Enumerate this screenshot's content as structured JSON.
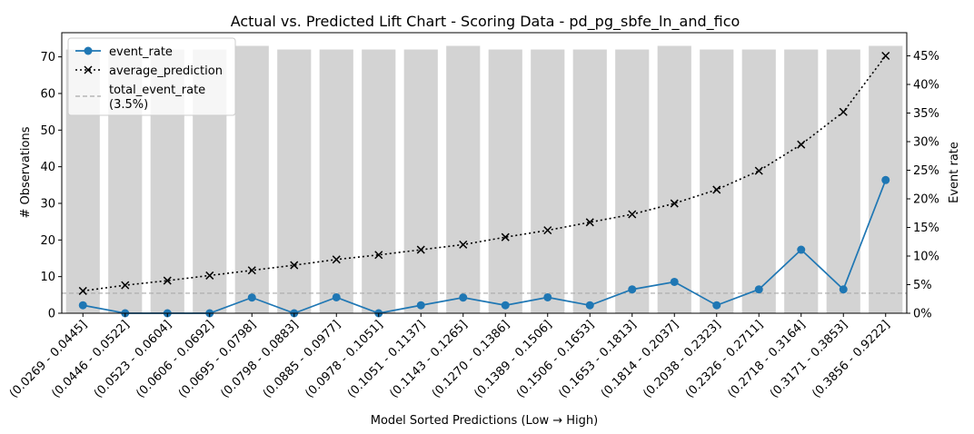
{
  "chart_data": {
    "type": "bar",
    "title": "Actual vs. Predicted Lift Chart - Scoring Data - pd_pg_sbfe_ln_and_fico",
    "xlabel": "Model Sorted Predictions (Low → High)",
    "ylabel": "# Observations",
    "y2label": "Event rate",
    "ylim": [
      0,
      76.6
    ],
    "y2lim": [
      0,
      0.4905
    ],
    "yticks": [
      "0",
      "10",
      "20",
      "30",
      "40",
      "50",
      "60",
      "70"
    ],
    "y2ticks": [
      "0%",
      "5%",
      "10%",
      "15%",
      "20%",
      "25%",
      "30%",
      "35%",
      "40%",
      "45%"
    ],
    "categories": [
      "(0.0269 - 0.0445]",
      "(0.0446 - 0.0522]",
      "(0.0523 - 0.0604]",
      "(0.0606 - 0.0692]",
      "(0.0695 - 0.0798]",
      "(0.0798 - 0.0883]",
      "(0.0885 - 0.0977]",
      "(0.0978 - 0.1051]",
      "(0.1051 - 0.1137]",
      "(0.1143 - 0.1265]",
      "(0.1270 - 0.1386]",
      "(0.1389 - 0.1506]",
      "(0.1506 - 0.1653]",
      "(0.1653 - 0.1813]",
      "(0.1814 - 0.2037]",
      "(0.2038 - 0.2323]",
      "(0.2326 - 0.2711]",
      "(0.2718 - 0.3164]",
      "(0.3171 - 0.3853]",
      "(0.3856 - 0.9222]"
    ],
    "bar_values": [
      72,
      72,
      72,
      72,
      73,
      72,
      72,
      72,
      72,
      73,
      72,
      72,
      72,
      72,
      73,
      72,
      72,
      72,
      72,
      73
    ],
    "bar_color": "#d3d3d3",
    "series": [
      {
        "name": "event_rate",
        "axis": "right",
        "color": "#1f77b4",
        "style": "solid-circle",
        "values": [
          0.0139,
          0.0,
          0.0,
          0.0,
          0.0274,
          0.0,
          0.0278,
          0.0,
          0.0139,
          0.0274,
          0.0139,
          0.0278,
          0.0139,
          0.0417,
          0.0548,
          0.0139,
          0.0417,
          0.1111,
          0.0417,
          0.2329
        ]
      },
      {
        "name": "average_prediction",
        "axis": "right",
        "color": "#000000",
        "style": "dotted-x",
        "values": [
          0.039,
          0.049,
          0.057,
          0.066,
          0.075,
          0.084,
          0.094,
          0.102,
          0.111,
          0.12,
          0.133,
          0.145,
          0.159,
          0.173,
          0.192,
          0.216,
          0.249,
          0.295,
          0.352,
          0.45
        ]
      },
      {
        "name": "total_event_rate\n(3.5%)",
        "axis": "right",
        "color": "#aaaaaa",
        "style": "dashed-hline",
        "value": 0.035
      }
    ],
    "legend": {
      "position": "top-left",
      "items": [
        "event_rate",
        "average_prediction",
        "total_event_rate",
        "(3.5%)"
      ]
    }
  }
}
